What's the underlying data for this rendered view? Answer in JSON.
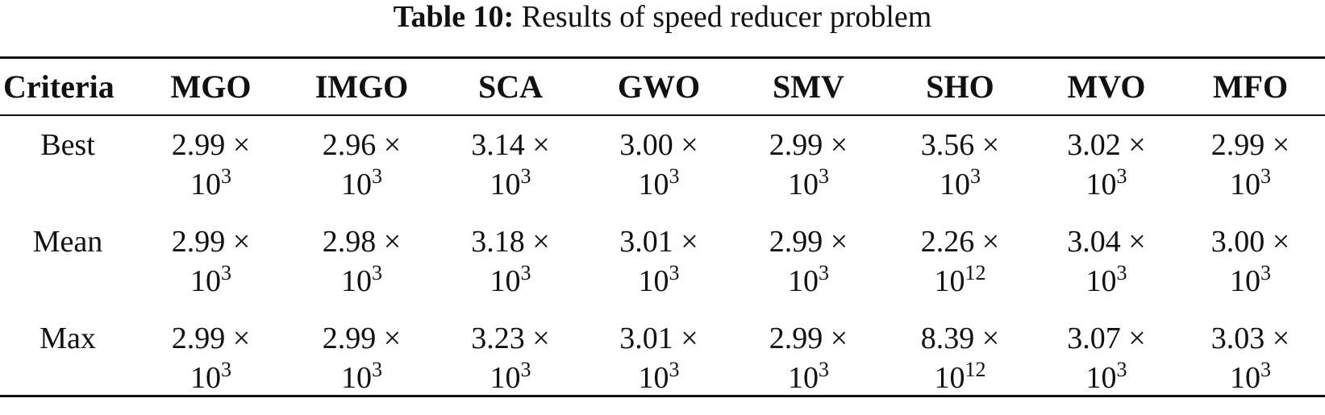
{
  "caption": {
    "label": "Table 10:",
    "text": "Results of speed reducer problem"
  },
  "table": {
    "header_criteria": "Criteria",
    "columns": [
      "MGO",
      "IMGO",
      "SCA",
      "GWO",
      "SMV",
      "SHO",
      "MVO",
      "MFO"
    ],
    "rows": [
      {
        "criteria": "Best",
        "cells": [
          {
            "mantissa": "2.99 ×",
            "base": "10",
            "exp": "3"
          },
          {
            "mantissa": "2.96 ×",
            "base": "10",
            "exp": "3"
          },
          {
            "mantissa": "3.14 ×",
            "base": "10",
            "exp": "3"
          },
          {
            "mantissa": "3.00 ×",
            "base": "10",
            "exp": "3"
          },
          {
            "mantissa": "2.99 ×",
            "base": "10",
            "exp": "3"
          },
          {
            "mantissa": "3.56 ×",
            "base": "10",
            "exp": "3"
          },
          {
            "mantissa": "3.02 ×",
            "base": "10",
            "exp": "3"
          },
          {
            "mantissa": "2.99 ×",
            "base": "10",
            "exp": "3"
          }
        ]
      },
      {
        "criteria": "Mean",
        "cells": [
          {
            "mantissa": "2.99 ×",
            "base": "10",
            "exp": "3"
          },
          {
            "mantissa": "2.98 ×",
            "base": "10",
            "exp": "3"
          },
          {
            "mantissa": "3.18 ×",
            "base": "10",
            "exp": "3"
          },
          {
            "mantissa": "3.01 ×",
            "base": "10",
            "exp": "3"
          },
          {
            "mantissa": "2.99 ×",
            "base": "10",
            "exp": "3"
          },
          {
            "mantissa": "2.26 ×",
            "base": "10",
            "exp": "12"
          },
          {
            "mantissa": "3.04 ×",
            "base": "10",
            "exp": "3"
          },
          {
            "mantissa": "3.00 ×",
            "base": "10",
            "exp": "3"
          }
        ]
      },
      {
        "criteria": "Max",
        "cells": [
          {
            "mantissa": "2.99 ×",
            "base": "10",
            "exp": "3"
          },
          {
            "mantissa": "2.99 ×",
            "base": "10",
            "exp": "3"
          },
          {
            "mantissa": "3.23 ×",
            "base": "10",
            "exp": "3"
          },
          {
            "mantissa": "3.01 ×",
            "base": "10",
            "exp": "3"
          },
          {
            "mantissa": "2.99 ×",
            "base": "10",
            "exp": "3"
          },
          {
            "mantissa": "8.39 ×",
            "base": "10",
            "exp": "12"
          },
          {
            "mantissa": "3.07 ×",
            "base": "10",
            "exp": "3"
          },
          {
            "mantissa": "3.03 ×",
            "base": "10",
            "exp": "3"
          }
        ]
      }
    ]
  }
}
